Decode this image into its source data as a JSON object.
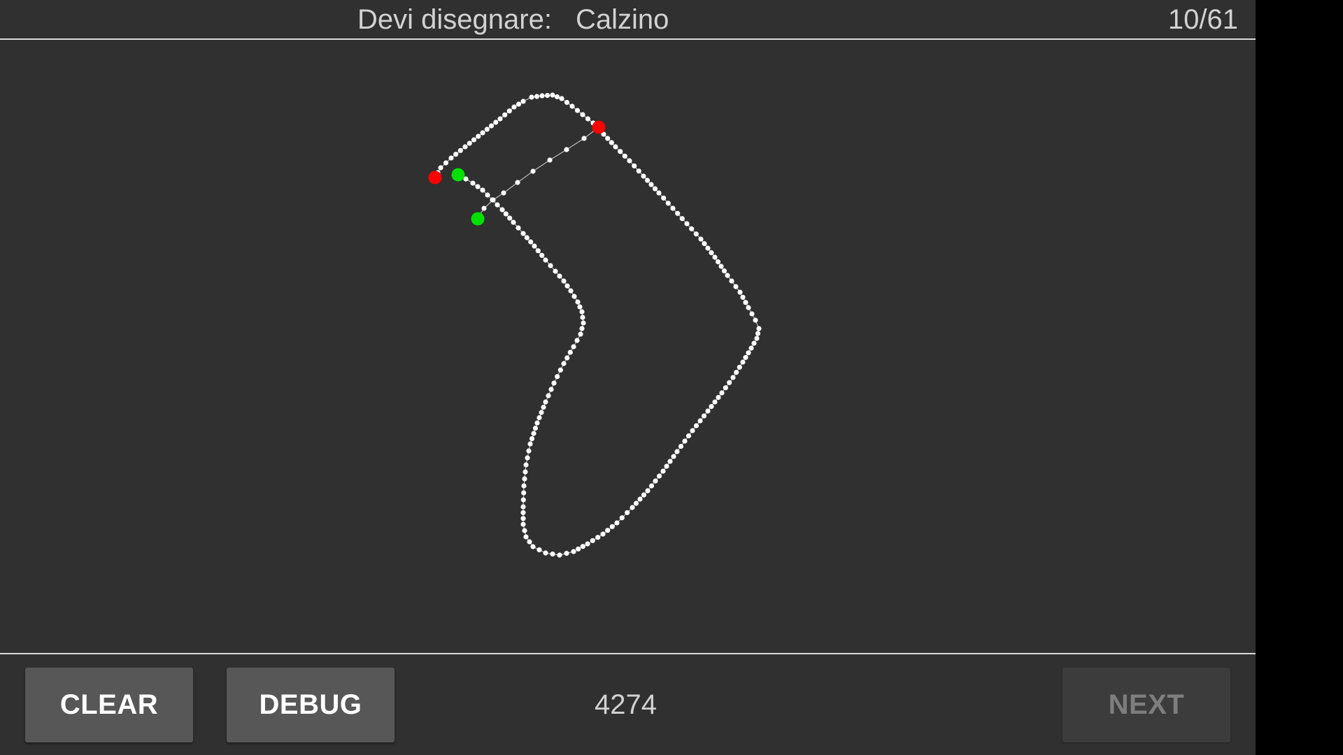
{
  "header": {
    "prompt_label": "Devi disegnare:",
    "prompt_word": "Calzino",
    "counter": "10/61"
  },
  "drawing": {
    "point_color": "#ffffff",
    "line_color": "#bdbdbd",
    "start_color": "#00e000",
    "end_color": "#ff0000"
  },
  "footer": {
    "clear_label": "CLEAR",
    "debug_label": "DEBUG",
    "score": "4274",
    "next_label": "NEXT"
  },
  "colors": {
    "background": "#303030",
    "button": "#575757",
    "button_disabled": "#3c3c3c",
    "divider": "#d8d8d8"
  }
}
